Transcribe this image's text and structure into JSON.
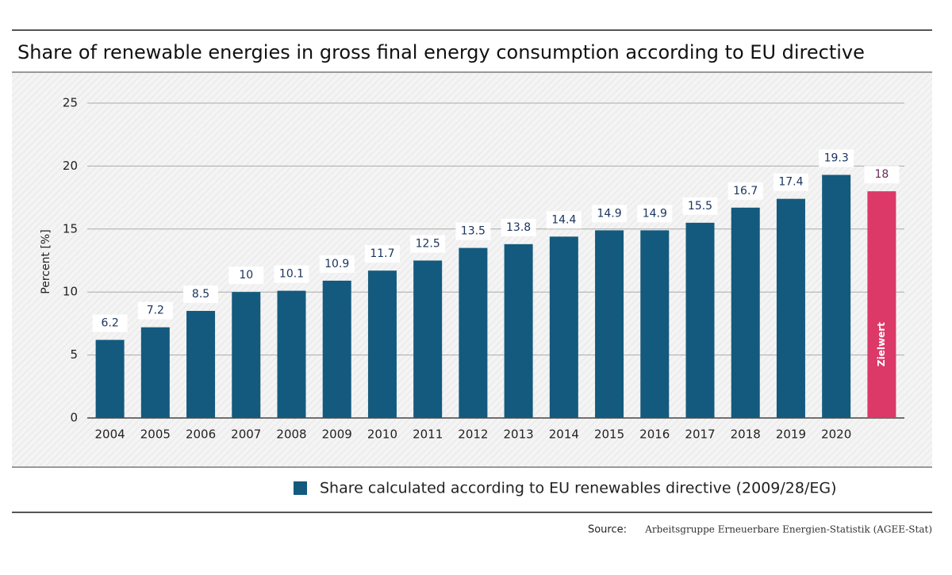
{
  "chart_data": {
    "type": "bar",
    "title": "Share of renewable energies in gross final energy consumption according to EU directive",
    "y_label": "Percent  [%]",
    "categories": [
      "2004",
      "2005",
      "2006",
      "2007",
      "2008",
      "2009",
      "2010",
      "2011",
      "2012",
      "2013",
      "2014",
      "2015",
      "2016",
      "2017",
      "2018",
      "2019",
      "2020",
      null
    ],
    "series": [
      {
        "name": "Share calculated according to EU renewables directive (2009/28/EG)",
        "color": "#135a7e",
        "values": [
          6.2,
          7.2,
          8.5,
          10,
          10.1,
          10.9,
          11.7,
          12.5,
          13.5,
          13.8,
          14.4,
          14.9,
          14.9,
          15.5,
          16.7,
          17.4,
          19.3,
          18
        ]
      }
    ],
    "bar_colors": [
      "#135a7e",
      "#135a7e",
      "#135a7e",
      "#135a7e",
      "#135a7e",
      "#135a7e",
      "#135a7e",
      "#135a7e",
      "#135a7e",
      "#135a7e",
      "#135a7e",
      "#135a7e",
      "#135a7e",
      "#135a7e",
      "#135a7e",
      "#135a7e",
      "#135a7e",
      "#dc3868"
    ],
    "annotation": "Zielwert",
    "ylim": [
      0,
      25
    ],
    "yticks": [
      0,
      5,
      10,
      15,
      20,
      25
    ],
    "grid": true,
    "source_label": "Source:",
    "source": "Arbeitsgruppe Erneuerbare Energien-Statistik (AGEE-Stat)"
  }
}
